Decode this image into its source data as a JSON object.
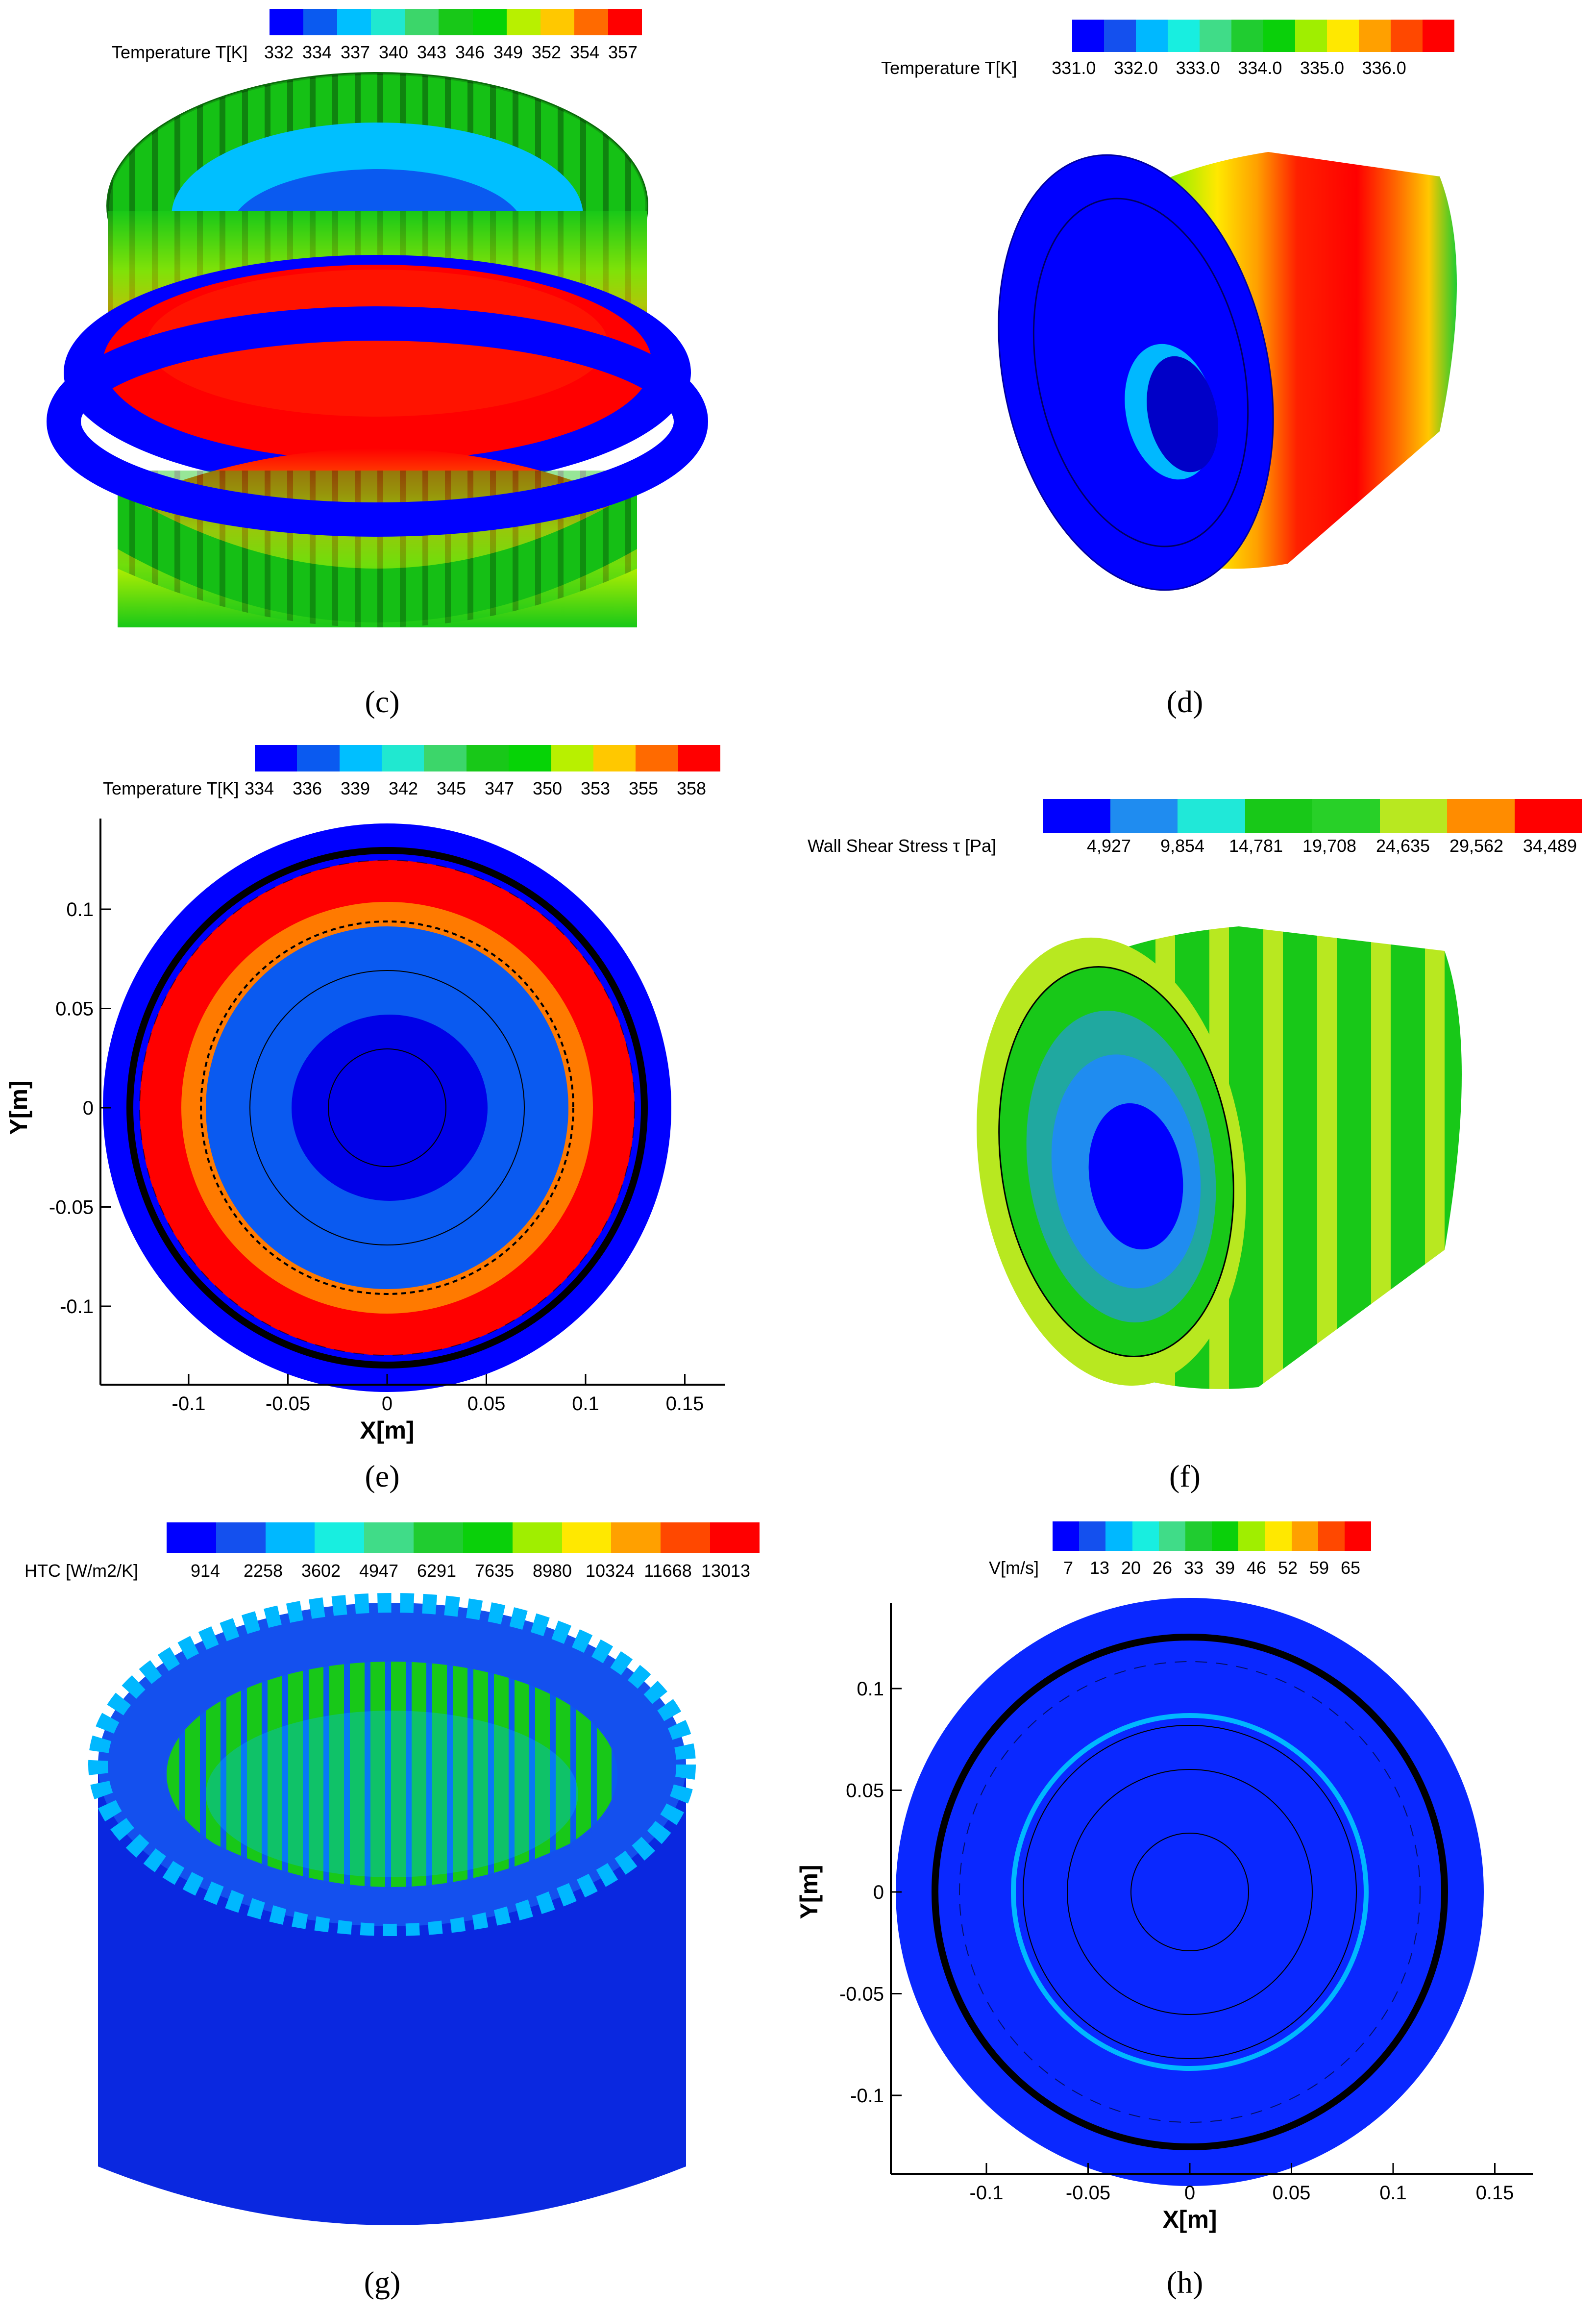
{
  "palettes": {
    "rainbow10": [
      "#0000ff",
      "#0a5af0",
      "#00bfff",
      "#20e8d0",
      "#3cd66a",
      "#18c818",
      "#06d306",
      "#b8f000",
      "#ffc800",
      "#ff6a00",
      "#ff0000"
    ],
    "rainbow12": [
      "#0000ff",
      "#1450ee",
      "#00b8ff",
      "#18eee0",
      "#40dc88",
      "#20cc30",
      "#0ad00a",
      "#a0ee00",
      "#ffe800",
      "#ffa000",
      "#ff4800",
      "#ff0000"
    ],
    "wss8": [
      "#0000ff",
      "#1f8cf0",
      "#20e8d8",
      "#18c818",
      "#28d028",
      "#b8e820",
      "#ff8c00",
      "#ff0000"
    ]
  },
  "panels": {
    "c": {
      "label": "(c)",
      "colorbar_title": "Temperature T[K]",
      "ticks": [
        "332",
        "334",
        "337",
        "340",
        "343",
        "346",
        "349",
        "352",
        "354",
        "357"
      ]
    },
    "d": {
      "label": "(d)",
      "colorbar_title": "Temperature T[K]",
      "ticks": [
        "331.0",
        "332.0",
        "333.0",
        "334.0",
        "335.0",
        "336.0"
      ]
    },
    "e": {
      "label": "(e)",
      "colorbar_title": "Temperature T[K]",
      "ticks": [
        "334",
        "336",
        "339",
        "342",
        "345",
        "347",
        "350",
        "353",
        "355",
        "358"
      ],
      "xlabel": "X[m]",
      "ylabel": "Y[m]",
      "xticks": [
        "-0.1",
        "-0.05",
        "0",
        "0.05",
        "0.1",
        "0.15"
      ],
      "yticks": [
        "0.1",
        "0.05",
        "0",
        "-0.05",
        "-0.1"
      ]
    },
    "f": {
      "label": "(f)",
      "colorbar_title": "Wall Shear Stress τ [Pa]",
      "ticks": [
        "4,927",
        "9,854",
        "14,781",
        "19,708",
        "24,635",
        "29,562",
        "34,489"
      ]
    },
    "g": {
      "label": "(g)",
      "colorbar_title": "HTC [W/m2/K]",
      "ticks": [
        "914",
        "2258",
        "3602",
        "4947",
        "6291",
        "7635",
        "8980",
        "10324",
        "11668",
        "13013"
      ]
    },
    "h": {
      "label": "(h)",
      "colorbar_title": "V[m/s]",
      "ticks": [
        "7",
        "13",
        "20",
        "26",
        "33",
        "39",
        "46",
        "52",
        "59",
        "65"
      ],
      "xlabel": "X[m]",
      "ylabel": "Y[m]",
      "xticks": [
        "-0.1",
        "-0.05",
        "0",
        "0.05",
        "0.1",
        "0.15"
      ],
      "yticks": [
        "0.1",
        "0.05",
        "0",
        "-0.05",
        "-0.1"
      ]
    }
  }
}
